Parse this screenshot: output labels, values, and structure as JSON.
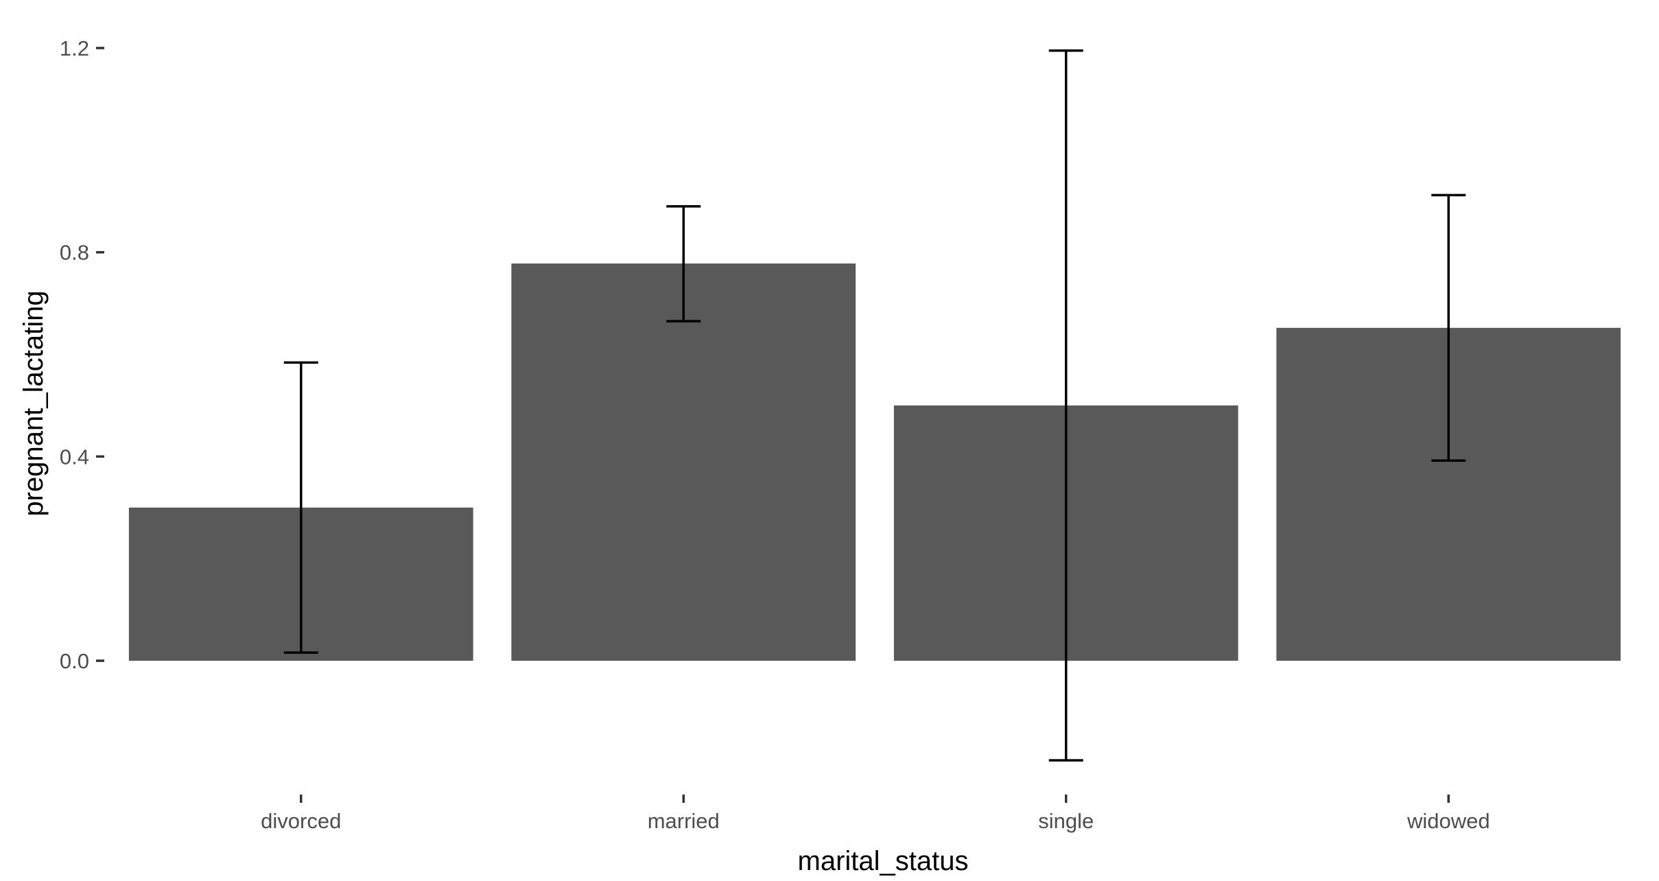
{
  "chart_data": {
    "type": "bar",
    "title": "",
    "xlabel": "marital_status",
    "ylabel": "pregnant_lactating",
    "categories": [
      "divorced",
      "married",
      "single",
      "widowed"
    ],
    "values": [
      0.3,
      0.778,
      0.5,
      0.652
    ],
    "error_lower": [
      0.016,
      0.665,
      -0.195,
      0.392
    ],
    "error_upper": [
      0.584,
      0.89,
      1.195,
      0.912
    ],
    "ylim": [
      -0.24,
      1.24
    ],
    "yticks": [
      0.0,
      0.4,
      0.8,
      1.2
    ],
    "ytick_labels": [
      "0.0",
      "0.4",
      "0.8",
      "1.2"
    ],
    "grid": false,
    "colors": {
      "bar": "#595959",
      "errorbar": "#000000",
      "tick": "#333333",
      "label": "#4d4d4d"
    }
  }
}
